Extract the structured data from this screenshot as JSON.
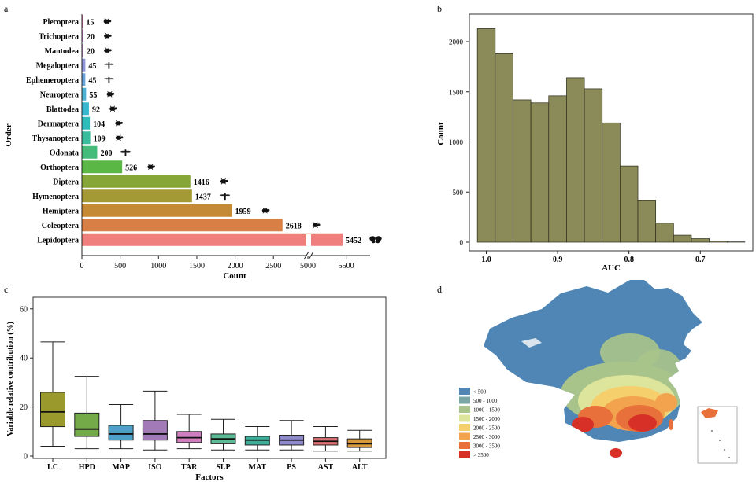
{
  "panels": {
    "a": "a",
    "b": "b",
    "c": "c",
    "d": "d"
  },
  "chart_data": [
    {
      "panel": "a",
      "type": "bar",
      "orientation": "horizontal",
      "axis_break": [
        2700,
        5000
      ],
      "xlabel": "Count",
      "ylabel": "Order",
      "xticks": [
        0,
        500,
        1000,
        1500,
        2000,
        2500,
        5000,
        5500
      ],
      "grid": false,
      "categories": [
        "Plecoptera",
        "Trichoptera",
        "Mantodea",
        "Megaloptera",
        "Ephemeroptera",
        "Neuroptera",
        "Blattodea",
        "Dermaptera",
        "Thysanoptera",
        "Odonata",
        "Orthoptera",
        "Diptera",
        "Hymenoptera",
        "Hemiptera",
        "Coleoptera",
        "Lepidoptera"
      ],
      "values": [
        15,
        20,
        20,
        45,
        45,
        55,
        92,
        104,
        109,
        200,
        526,
        1416,
        1437,
        1959,
        2618,
        5452
      ],
      "colors": [
        "#d77aa8",
        "#cb80c2",
        "#b48ad1",
        "#8f95d6",
        "#6aa3da",
        "#4db2d6",
        "#38b8cf",
        "#2fbcb8",
        "#3bbd9d",
        "#45bb7c",
        "#5bb745",
        "#86a638",
        "#a39a35",
        "#c48a35",
        "#d77f45",
        "#ef7f7d"
      ],
      "icons": [
        "stonefly-icon",
        "caddisfly-icon",
        "mantis-icon",
        "dobsonfly-icon",
        "mayfly-icon",
        "lacewing-icon",
        "cockroach-icon",
        "earwig-icon",
        "thrips-icon",
        "dragonfly-icon",
        "grasshopper-icon",
        "fly-icon",
        "wasp-icon",
        "cicada-icon",
        "beetle-icon",
        "butterfly-icon"
      ]
    },
    {
      "panel": "b",
      "type": "bar",
      "subtype": "histogram",
      "xlabel": "AUC",
      "ylabel": "Count",
      "x_reversed": true,
      "xticks": [
        1.0,
        0.9,
        0.8,
        0.7
      ],
      "yticks": [
        0,
        500,
        1000,
        1500,
        2000
      ],
      "grid": false,
      "bin_width": 0.025,
      "bin_start": 1.0125,
      "values": [
        2130,
        1880,
        1420,
        1390,
        1460,
        1640,
        1530,
        1190,
        760,
        420,
        190,
        70,
        35,
        12,
        3
      ],
      "color": "#8b8b5a"
    },
    {
      "panel": "c",
      "type": "box",
      "xlabel": "Factors",
      "ylabel": "Variable relative contribution (%)",
      "yticks": [
        0,
        20,
        40,
        60
      ],
      "grid": false,
      "categories": [
        "LC",
        "HPD",
        "MAP",
        "ISO",
        "TAR",
        "SLP",
        "MAT",
        "PS",
        "AST",
        "ALT"
      ],
      "boxes": [
        {
          "min": 4,
          "q1": 12,
          "median": 18,
          "q3": 26,
          "max": 46.5,
          "color": "#9a9a2c"
        },
        {
          "min": 3,
          "q1": 8,
          "median": 11,
          "q3": 17.5,
          "max": 32.5,
          "color": "#74aa48"
        },
        {
          "min": 3,
          "q1": 6.5,
          "median": 9,
          "q3": 12.5,
          "max": 21,
          "color": "#4fa0c8"
        },
        {
          "min": 2.5,
          "q1": 6.5,
          "median": 9,
          "q3": 14.5,
          "max": 26.5,
          "color": "#a27ab8"
        },
        {
          "min": 3,
          "q1": 5.5,
          "median": 7.5,
          "q3": 10,
          "max": 17,
          "color": "#cf7fbf"
        },
        {
          "min": 2.5,
          "q1": 5,
          "median": 7,
          "q3": 9,
          "max": 15,
          "color": "#5bbb96"
        },
        {
          "min": 2.5,
          "q1": 4.5,
          "median": 6.5,
          "q3": 8,
          "max": 12,
          "color": "#3fae99"
        },
        {
          "min": 2.5,
          "q1": 4.5,
          "median": 6.5,
          "q3": 8.5,
          "max": 14.5,
          "color": "#8e8acb"
        },
        {
          "min": 2,
          "q1": 4.5,
          "median": 6,
          "q3": 7.5,
          "max": 12,
          "color": "#e07070"
        },
        {
          "min": 2,
          "q1": 3.5,
          "median": 5,
          "q3": 7,
          "max": 10.5,
          "color": "#d79a3a"
        }
      ]
    },
    {
      "panel": "d",
      "type": "heatmap",
      "subtype": "choropleth-map",
      "legend_title": "",
      "legend_placement": "bottom-left",
      "legend": [
        "< 500",
        "500 - 1000",
        "1000 - 1500",
        "1500 - 2000",
        "2000 - 2500",
        "2500 - 3000",
        "3000 - 3500",
        "> 3500"
      ],
      "colors": [
        "#4f86b5",
        "#7ba6a6",
        "#a9c48a",
        "#dde59c",
        "#f4cf6c",
        "#f3a24d",
        "#e8703a",
        "#d73027"
      ]
    }
  ]
}
